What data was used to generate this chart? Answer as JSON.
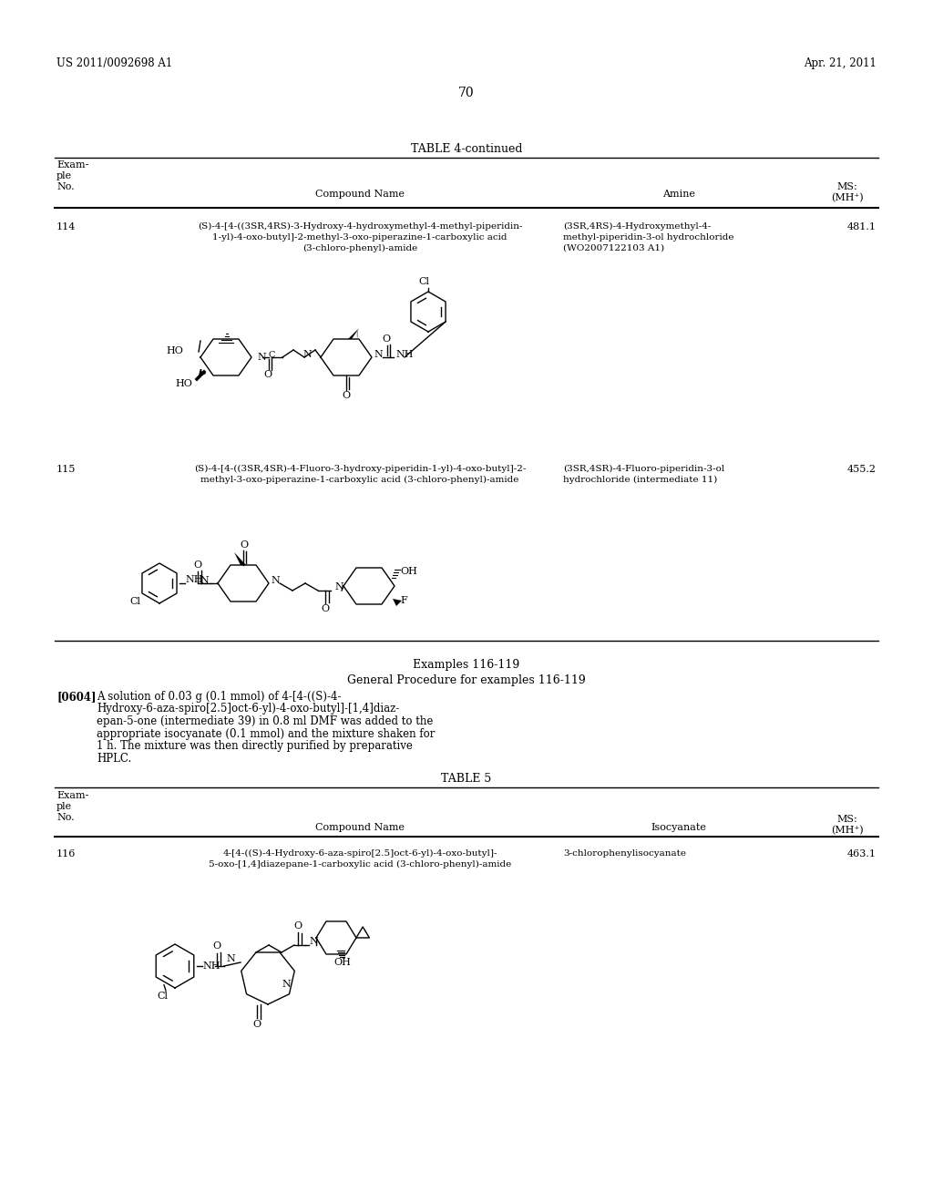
{
  "bg_color": "#ffffff",
  "header_left": "US 2011/0092698 A1",
  "header_right": "Apr. 21, 2011",
  "page_number": "70",
  "table4_title": "TABLE 4-continued",
  "col1_header": [
    "Exam-",
    "ple",
    "No."
  ],
  "col2_header": "Compound Name",
  "col3_header_t4": "Amine",
  "col4_header": [
    "MS:",
    "(MH⁺)"
  ],
  "row114_no": "114",
  "row114_name": [
    "(S)-4-[4-((3SR,4RS)-3-Hydroxy-4-hydroxymethyl-4-methyl-piperidin-",
    "1-yl)-4-oxo-butyl]-2-methyl-3-oxo-piperazine-1-carboxylic acid",
    "(3-chloro-phenyl)-amide"
  ],
  "row114_amine": [
    "(3SR,4RS)-4-Hydroxymethyl-4-",
    "methyl-piperidin-3-ol hydrochloride",
    "(WO2007122103 A1)"
  ],
  "row114_ms": "481.1",
  "row115_no": "115",
  "row115_name": [
    "(S)-4-[4-((3SR,4SR)-4-Fluoro-3-hydroxy-piperidin-1-yl)-4-oxo-butyl]-2-",
    "methyl-3-oxo-piperazine-1-carboxylic acid (3-chloro-phenyl)-amide"
  ],
  "row115_amine": [
    "(3SR,4SR)-4-Fluoro-piperidin-3-ol",
    "hydrochloride (intermediate 11)"
  ],
  "row115_ms": "455.2",
  "section_title": "Examples 116-119",
  "section_subtitle": "General Procedure for examples 116-119",
  "para_tag": "[0604]",
  "para_lines": [
    "A solution of 0.03 g (0.1 mmol) of 4-[4-((S)-4-",
    "Hydroxy-6-aza-spiro[2.5]oct-6-yl)-4-oxo-butyl]-[1,4]diaz-",
    "epan-5-one (intermediate 39) in 0.8 ml DMF was added to the",
    "appropriate isocyanate (0.1 mmol) and the mixture shaken for",
    "1 h. The mixture was then directly purified by preparative",
    "HPLC."
  ],
  "table5_title": "TABLE 5",
  "col3_header_t5": "Isocyanate",
  "row116_no": "116",
  "row116_name": [
    "4-[4-((S)-4-Hydroxy-6-aza-spiro[2.5]oct-6-yl)-4-oxo-butyl]-",
    "5-oxo-[1,4]diazepane-1-carboxylic acid (3-chloro-phenyl)-amide"
  ],
  "row116_iso": "3-chlorophenylisocyanate",
  "row116_ms": "463.1"
}
